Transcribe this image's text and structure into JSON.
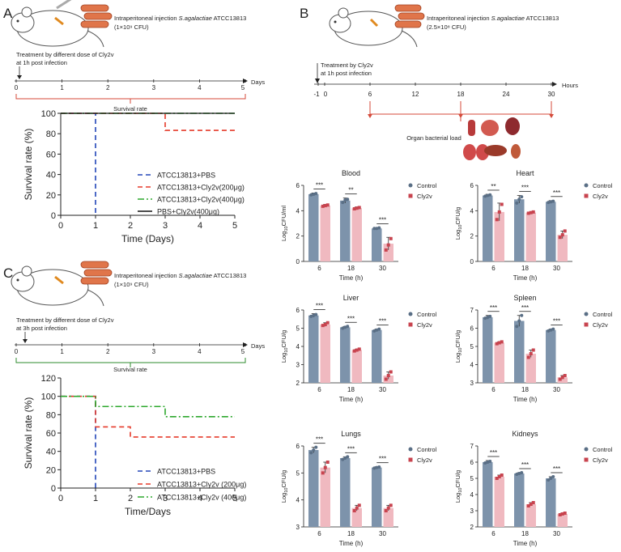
{
  "panel_letters": {
    "a": "A",
    "b": "B",
    "c": "C"
  },
  "panel_a": {
    "injection_text": "Intraperitoneal injection ",
    "species": "S.agalactiae",
    "strain": " ATCC13813",
    "dose": "(1×10⁹ CFU)",
    "treatment_line1": "Treatment by different dose of Cly2v",
    "treatment_line2": "at 1h post infection",
    "timeline_ticks": [
      "0",
      "1",
      "2",
      "3",
      "4",
      "5"
    ],
    "timeline_unit": "Days",
    "bracket_label": "Survival rate"
  },
  "panel_b": {
    "injection_text": "Intraperitoneal injection ",
    "species": "S.agalactiae",
    "strain": " ATCC13813",
    "dose": "(2.5×10⁸ CFU)",
    "treatment_line1": "Treatment by Cly2v",
    "treatment_line2": "at 1h post infection",
    "timeline_ticks": [
      "-1",
      "0",
      "6",
      "12",
      "18",
      "24",
      "30"
    ],
    "timeline_unit": "Hours",
    "bracket_label": "Organ bacterial load"
  },
  "panel_c": {
    "injection_text": "Intraperitoneal injection ",
    "species": "S.agalactiae",
    "strain": " ATCC13813",
    "dose": "(1×10⁹ CFU)",
    "treatment_line1": "Treatment by different dose of Cly2v",
    "treatment_line2": "at 3h post infection",
    "timeline_ticks": [
      "0",
      "1",
      "2",
      "3",
      "4",
      "5"
    ],
    "timeline_unit": "Days",
    "bracket_label": "Survival rate"
  },
  "colors": {
    "control": "#7d93ab",
    "control_dot": "#5a6f86",
    "cly2v": "#f0b9c0",
    "cly2v_dot": "#c8444f",
    "pbs": "#2346b8",
    "low": "#e53a2a",
    "high": "#2ea82e",
    "pbs_cly2v": "#111111",
    "timeline_a": "#d44a3a",
    "timeline_c": "#2e8b2e",
    "timeline_b": "#d44a3a"
  },
  "chart_data": [
    {
      "id": "survivalA",
      "type": "line",
      "xlabel": "Time (Days)",
      "ylabel": "Survival rate (%)",
      "xlim": [
        0,
        5
      ],
      "ylim": [
        0,
        100
      ],
      "xticks": [
        "0",
        "1",
        "2",
        "3",
        "4",
        "5"
      ],
      "yticks": [
        "0",
        "20",
        "40",
        "60",
        "80",
        "100"
      ],
      "series": [
        {
          "name": "ATCC13813+PBS",
          "style": "pbs",
          "dash": "dash",
          "x": [
            0,
            1,
            1
          ],
          "y": [
            100,
            100,
            0
          ]
        },
        {
          "name": "ATCC13813+Cly2v(200μg)",
          "style": "low",
          "dash": "dash",
          "x": [
            0,
            3,
            3,
            5
          ],
          "y": [
            100,
            100,
            83.3,
            83.3
          ]
        },
        {
          "name": "ATCC13813+Cly2v(400μg)",
          "style": "high",
          "dash": "dashdot",
          "x": [
            0,
            5
          ],
          "y": [
            100,
            100
          ]
        },
        {
          "name": "PBS+Cly2v(400μg)",
          "style": "pbs_cly2v",
          "dash": "solid",
          "x": [
            0,
            5
          ],
          "y": [
            100,
            100
          ]
        }
      ]
    },
    {
      "id": "survivalC",
      "type": "line",
      "xlabel": "Time/Days",
      "ylabel": "Survival rate (%)",
      "xlim": [
        0,
        5
      ],
      "ylim": [
        0,
        120
      ],
      "xticks": [
        "0",
        "1",
        "2",
        "3",
        "4",
        "5"
      ],
      "yticks": [
        "0",
        "20",
        "40",
        "60",
        "80",
        "100",
        "120"
      ],
      "series": [
        {
          "name": "ATCC13813+PBS",
          "style": "pbs",
          "dash": "dash",
          "x": [
            0,
            1,
            1
          ],
          "y": [
            100,
            100,
            0
          ]
        },
        {
          "name": "ATCC13813+Cly2v (200μg)",
          "style": "low",
          "dash": "dash",
          "x": [
            0,
            1,
            1,
            2,
            2,
            5
          ],
          "y": [
            100,
            100,
            66.7,
            66.7,
            55.6,
            55.6
          ]
        },
        {
          "name": "ATCC13813+Cly2v (400μg)",
          "style": "high",
          "dash": "dashdot",
          "x": [
            0,
            1,
            1,
            3,
            3,
            5
          ],
          "y": [
            100,
            100,
            88.9,
            88.9,
            77.8,
            77.8
          ]
        }
      ]
    },
    {
      "id": "blood",
      "type": "bar",
      "title": "Blood",
      "ylabel_main": "Log",
      "ylabel_sub": "10",
      "ylabel_end": "CFU/ml",
      "xlabel": "Time (h)",
      "categories": [
        "6",
        "18",
        "30"
      ],
      "ylim": [
        0,
        6
      ],
      "yticks": [
        "0",
        "2",
        "4",
        "6"
      ],
      "series": [
        {
          "name": "Control",
          "values": [
            5.3,
            4.8,
            2.6
          ],
          "err": [
            0.1,
            0.2,
            0.05
          ],
          "points": [
            [
              5.25,
              5.3,
              5.35
            ],
            [
              4.65,
              4.85,
              4.9
            ],
            [
              2.6,
              2.6,
              2.65
            ]
          ]
        },
        {
          "name": "Cly2v",
          "values": [
            4.4,
            4.2,
            1.4
          ],
          "err": [
            0.1,
            0.1,
            0.5
          ],
          "points": [
            [
              4.35,
              4.4,
              4.45
            ],
            [
              4.15,
              4.2,
              4.25
            ],
            [
              0.9,
              1.3,
              1.8
            ]
          ]
        }
      ],
      "sig": [
        "***",
        "**",
        "***"
      ],
      "legend": [
        "Control",
        "Cly2v"
      ]
    },
    {
      "id": "heart",
      "type": "bar",
      "title": "Heart",
      "ylabel_main": "Log",
      "ylabel_sub": "10",
      "ylabel_end": "CFU/g",
      "xlabel": "Time (h)",
      "categories": [
        "6",
        "18",
        "30"
      ],
      "ylim": [
        0,
        6
      ],
      "yticks": [
        "0",
        "2",
        "4",
        "6"
      ],
      "series": [
        {
          "name": "Control",
          "values": [
            5.2,
            4.9,
            4.7
          ],
          "err": [
            0.1,
            0.3,
            0.1
          ],
          "points": [
            [
              5.15,
              5.2,
              5.25
            ],
            [
              4.6,
              4.9,
              5.1
            ],
            [
              4.65,
              4.7,
              4.75
            ]
          ]
        },
        {
          "name": "Cly2v",
          "values": [
            3.9,
            3.85,
            2.1
          ],
          "err": [
            0.7,
            0.05,
            0.3
          ],
          "points": [
            [
              3.3,
              3.9,
              4.5
            ],
            [
              3.8,
              3.85,
              3.9
            ],
            [
              1.9,
              2.1,
              2.4
            ]
          ]
        }
      ],
      "sig": [
        "**",
        "***",
        "***"
      ],
      "legend": [
        "Control",
        "Cly2v"
      ]
    },
    {
      "id": "liver",
      "type": "bar",
      "title": "Liver",
      "ylabel_main": "Log",
      "ylabel_sub": "10",
      "ylabel_end": "CFU/g",
      "xlabel": "Time (h)",
      "categories": [
        "6",
        "18",
        "30"
      ],
      "ylim": [
        2,
        6
      ],
      "yticks": [
        "2",
        "3",
        "4",
        "5",
        "6"
      ],
      "series": [
        {
          "name": "Control",
          "values": [
            5.7,
            5.05,
            4.9
          ],
          "err": [
            0.1,
            0.05,
            0.05
          ],
          "points": [
            [
              5.65,
              5.7,
              5.75
            ],
            [
              5.0,
              5.05,
              5.1
            ],
            [
              4.85,
              4.9,
              4.95
            ]
          ]
        },
        {
          "name": "Cly2v",
          "values": [
            5.2,
            3.8,
            2.4
          ],
          "err": [
            0.1,
            0.05,
            0.2
          ],
          "points": [
            [
              5.15,
              5.2,
              5.3
            ],
            [
              3.75,
              3.8,
              3.85
            ],
            [
              2.2,
              2.4,
              2.6
            ]
          ]
        }
      ],
      "sig": [
        "***",
        "***",
        "***"
      ],
      "legend": [
        "Control",
        "Cly2v"
      ]
    },
    {
      "id": "spleen",
      "type": "bar",
      "title": "Spleen",
      "ylabel_main": "Log",
      "ylabel_sub": "10",
      "ylabel_end": "CFU/g",
      "xlabel": "Time (h)",
      "categories": [
        "6",
        "18",
        "30"
      ],
      "ylim": [
        3,
        7
      ],
      "yticks": [
        "3",
        "4",
        "5",
        "6",
        "7"
      ],
      "series": [
        {
          "name": "Control",
          "values": [
            6.6,
            6.4,
            5.9
          ],
          "err": [
            0.1,
            0.3,
            0.05
          ],
          "points": [
            [
              6.55,
              6.6,
              6.65
            ],
            [
              6.1,
              6.4,
              6.7
            ],
            [
              5.85,
              5.9,
              5.95
            ]
          ]
        },
        {
          "name": "Cly2v",
          "values": [
            5.2,
            4.6,
            3.3
          ],
          "err": [
            0.05,
            0.2,
            0.1
          ],
          "points": [
            [
              5.15,
              5.2,
              5.25
            ],
            [
              4.4,
              4.6,
              4.8
            ],
            [
              3.2,
              3.3,
              3.4
            ]
          ]
        }
      ],
      "sig": [
        "***",
        "***",
        "***"
      ],
      "legend": [
        "Control",
        "Cly2v"
      ]
    },
    {
      "id": "lungs",
      "type": "bar",
      "title": "Lungs",
      "ylabel_main": "Log",
      "ylabel_sub": "10",
      "ylabel_end": "CFU/g",
      "xlabel": "Time (h)",
      "categories": [
        "6",
        "18",
        "30"
      ],
      "ylim": [
        3,
        6
      ],
      "yticks": [
        "3",
        "4",
        "5",
        "6"
      ],
      "series": [
        {
          "name": "Control",
          "values": [
            5.85,
            5.55,
            5.2
          ],
          "err": [
            0.1,
            0.05,
            0.03
          ],
          "points": [
            [
              5.75,
              5.85,
              5.95
            ],
            [
              5.5,
              5.55,
              5.6
            ],
            [
              5.18,
              5.2,
              5.22
            ]
          ]
        },
        {
          "name": "Cly2v",
          "values": [
            5.2,
            3.7,
            3.7
          ],
          "err": [
            0.2,
            0.1,
            0.1
          ],
          "points": [
            [
              5.0,
              5.2,
              5.4
            ],
            [
              3.6,
              3.7,
              3.8
            ],
            [
              3.6,
              3.7,
              3.8
            ]
          ]
        }
      ],
      "sig": [
        "***",
        "***",
        "***"
      ],
      "legend": [
        "Control",
        "Cly2v"
      ]
    },
    {
      "id": "kidneys",
      "type": "bar",
      "title": "Kidneys",
      "ylabel_main": "Log",
      "ylabel_sub": "10",
      "ylabel_end": "CFU/g",
      "xlabel": "Time (h)",
      "categories": [
        "6",
        "18",
        "30"
      ],
      "ylim": [
        2,
        7
      ],
      "yticks": [
        "2",
        "3",
        "4",
        "5",
        "6",
        "7"
      ],
      "series": [
        {
          "name": "Control",
          "values": [
            6.0,
            5.3,
            5.0
          ],
          "err": [
            0.1,
            0.05,
            0.1
          ],
          "points": [
            [
              5.95,
              6.0,
              6.05
            ],
            [
              5.25,
              5.3,
              5.35
            ],
            [
              4.9,
              5.0,
              5.1
            ]
          ]
        },
        {
          "name": "Cly2v",
          "values": [
            5.1,
            3.4,
            2.8
          ],
          "err": [
            0.1,
            0.1,
            0.05
          ],
          "points": [
            [
              5.0,
              5.1,
              5.2
            ],
            [
              3.3,
              3.4,
              3.5
            ],
            [
              2.75,
              2.8,
              2.85
            ]
          ]
        }
      ],
      "sig": [
        "***",
        "***",
        "***"
      ],
      "legend": [
        "Control",
        "Cly2v"
      ]
    }
  ]
}
